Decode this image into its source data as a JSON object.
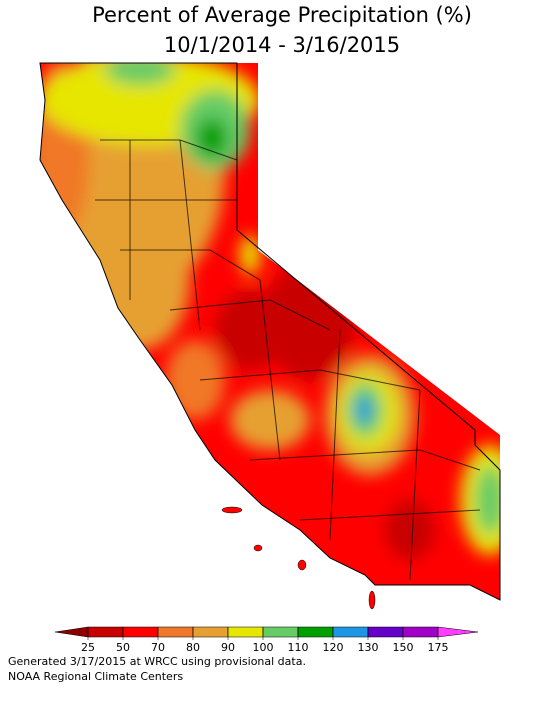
{
  "title": "Percent of Average Precipitation (%)",
  "subtitle": "10/1/2014 - 3/16/2015",
  "legend": {
    "ticks": [
      25,
      50,
      70,
      80,
      90,
      100,
      110,
      120,
      130,
      150,
      175
    ],
    "colors": [
      "#8c0000",
      "#c80000",
      "#ff0000",
      "#f07828",
      "#e6a032",
      "#e6e600",
      "#66cc66",
      "#00a000",
      "#1e96e6",
      "#6400c8",
      "#a000c8",
      "#ff3cff"
    ]
  },
  "footer": [
    "Generated 3/17/2015 at WRCC using provisional data.",
    "NOAA Regional Climate Centers"
  ]
}
